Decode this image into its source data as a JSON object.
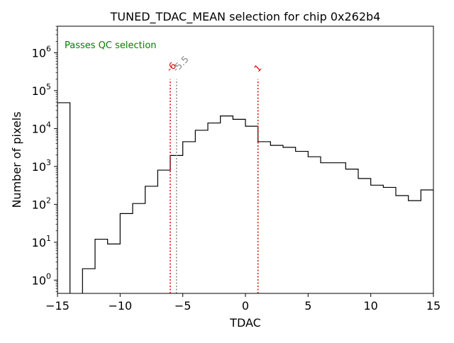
{
  "chart_data": {
    "type": "histogram",
    "title": "TUNED_TDAC_MEAN selection for chip 0x262b4",
    "xlabel": "TDAC",
    "ylabel": "Number of pixels",
    "xlim": [
      -15,
      15
    ],
    "ylim_log10": [
      -0.35,
      6.7
    ],
    "yscale": "log",
    "x_ticks": [
      -15,
      -10,
      -5,
      0,
      5,
      10,
      15
    ],
    "x_tick_labels": [
      "−15",
      "−10",
      "−5",
      "0",
      "5",
      "10",
      "15"
    ],
    "y_ticks_exp": [
      0,
      1,
      2,
      3,
      4,
      5,
      6
    ],
    "y_tick_labels": [
      {
        "base": "10",
        "exp": "0"
      },
      {
        "base": "10",
        "exp": "1"
      },
      {
        "base": "10",
        "exp": "2"
      },
      {
        "base": "10",
        "exp": "3"
      },
      {
        "base": "10",
        "exp": "4"
      },
      {
        "base": "10",
        "exp": "5"
      },
      {
        "base": "10",
        "exp": "6"
      }
    ],
    "bin_edges": [
      -15,
      -14,
      -13,
      -12,
      -11,
      -10,
      -9,
      -8,
      -7,
      -6,
      -5,
      -4,
      -3,
      -2,
      -1,
      0,
      1,
      2,
      3,
      4,
      5,
      6,
      7,
      8,
      9,
      10,
      11,
      12,
      13,
      14,
      15
    ],
    "counts": [
      48000,
      0,
      2,
      12,
      9,
      57,
      105,
      300,
      800,
      1950,
      4500,
      9000,
      14000,
      21500,
      17500,
      11500,
      4500,
      3600,
      3200,
      2500,
      1800,
      1250,
      1250,
      850,
      480,
      320,
      280,
      170,
      125,
      240
    ],
    "cut_lines": [
      {
        "x": -6,
        "label": "-6",
        "color": "#e00000"
      },
      {
        "x": -5.5,
        "label": "-5.5",
        "color": "#888888"
      },
      {
        "x": 1,
        "label": "1",
        "color": "#e00000"
      }
    ],
    "annotation": {
      "text": "Passes QC selection",
      "color": "#008000"
    }
  }
}
